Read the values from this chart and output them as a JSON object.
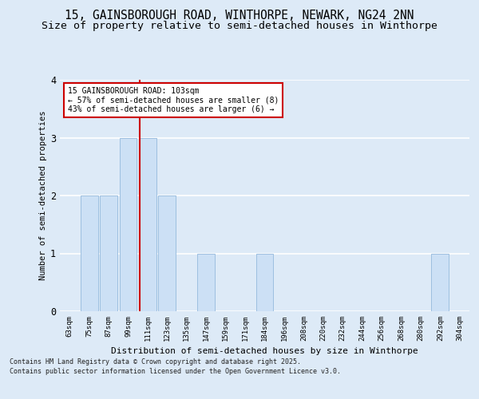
{
  "title_line1": "15, GAINSBOROUGH ROAD, WINTHORPE, NEWARK, NG24 2NN",
  "title_line2": "Size of property relative to semi-detached houses in Winthorpe",
  "xlabel": "Distribution of semi-detached houses by size in Winthorpe",
  "ylabel": "Number of semi-detached properties",
  "bins": [
    "63sqm",
    "75sqm",
    "87sqm",
    "99sqm",
    "111sqm",
    "123sqm",
    "135sqm",
    "147sqm",
    "159sqm",
    "171sqm",
    "184sqm",
    "196sqm",
    "208sqm",
    "220sqm",
    "232sqm",
    "244sqm",
    "256sqm",
    "268sqm",
    "280sqm",
    "292sqm",
    "304sqm"
  ],
  "values": [
    0,
    2,
    2,
    3,
    3,
    2,
    0,
    1,
    0,
    0,
    1,
    0,
    0,
    0,
    0,
    0,
    0,
    0,
    0,
    1,
    0
  ],
  "bar_color": "#cce0f5",
  "bar_edge_color": "#9dbfe0",
  "red_line_x": 3.58,
  "annotation_title": "15 GAINSBOROUGH ROAD: 103sqm",
  "annotation_line1": "← 57% of semi-detached houses are smaller (8)",
  "annotation_line2": "43% of semi-detached houses are larger (6) →",
  "annotation_box_color": "#ffffff",
  "annotation_box_edge": "#cc0000",
  "red_line_color": "#cc0000",
  "footnote1": "Contains HM Land Registry data © Crown copyright and database right 2025.",
  "footnote2": "Contains public sector information licensed under the Open Government Licence v3.0.",
  "ylim": [
    0,
    4
  ],
  "yticks": [
    0,
    1,
    2,
    3,
    4
  ],
  "bg_color": "#ddeaf7",
  "plot_bg_color": "#ddeaf7",
  "grid_color": "#ffffff",
  "title_fontsize": 10.5,
  "subtitle_fontsize": 9.5
}
